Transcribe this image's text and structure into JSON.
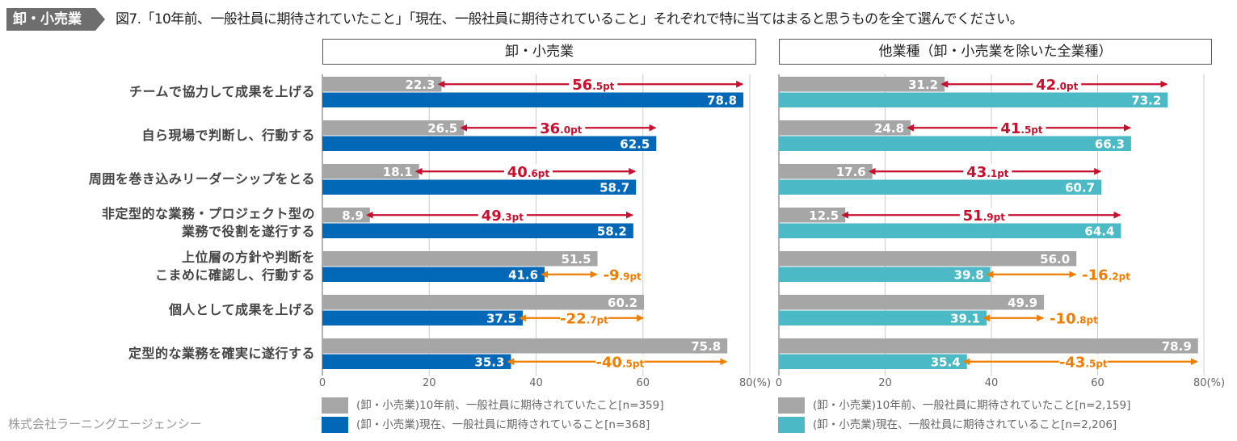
{
  "header": {
    "badge": "卸・小売業",
    "question": "図7.「10年前、一般社員に期待されていたこと」「現在、一般社員に期待されていること」それぞれで特に当てはまると思うものを全て選んでください。"
  },
  "categories": [
    [
      "チームで協力して成果を上げる"
    ],
    [
      "自ら現場で判断し、行動する"
    ],
    [
      "周囲を巻き込みリーダーシップをとる"
    ],
    [
      "非定型的な業務・プロジェクト型の",
      "業務で役割を遂行する"
    ],
    [
      "上位層の方針や判断を",
      "こまめに確認し、行動する"
    ],
    [
      "個人として成果を上げる"
    ],
    [
      "定型的な業務を確実に遂行する"
    ]
  ],
  "colors": {
    "past": "#a6a6a6",
    "now_left": "#0068b7",
    "now_right": "#4bbac6",
    "increase": "#c8102e",
    "decrease": "#ef7d00",
    "grid": "#cccccc",
    "badge": "#6e6e6e"
  },
  "footer": "株式会社ラーニングエージェンシー",
  "chart_data": [
    {
      "type": "bar",
      "orientation": "horizontal",
      "title": "卸・小売業",
      "categories": [
        "チームで協力して成果を上げる",
        "自ら現場で判断し、行動する",
        "周囲を巻き込みリーダーシップをとる",
        "非定型的な業務・プロジェクト型の業務で役割を遂行する",
        "上位層の方針や判断をこまめに確認し、行動する",
        "個人として成果を上げる",
        "定型的な業務を確実に遂行する"
      ],
      "series": [
        {
          "name": "(卸・小売業)10年前、一般社員に期待されていたこと[n=359]",
          "values": [
            22.3,
            26.5,
            18.1,
            8.9,
            51.5,
            60.2,
            75.8
          ]
        },
        {
          "name": "(卸・小売業)現在、一般社員に期待されていること[n=368]",
          "values": [
            78.8,
            62.5,
            58.7,
            58.2,
            41.6,
            37.5,
            35.3
          ]
        }
      ],
      "differences": [
        {
          "int": "56",
          "dec": ".5pt",
          "sign": "+"
        },
        {
          "int": "36",
          "dec": ".0pt",
          "sign": "+"
        },
        {
          "int": "40",
          "dec": ".6pt",
          "sign": "+"
        },
        {
          "int": "49",
          "dec": ".3pt",
          "sign": "+"
        },
        {
          "int": "-9",
          "dec": ".9pt",
          "sign": "-"
        },
        {
          "int": "-22",
          "dec": ".7pt",
          "sign": "-"
        },
        {
          "int": "-40",
          "dec": ".5pt",
          "sign": "-"
        }
      ],
      "xlim": [
        0,
        80
      ],
      "xticks": [
        "0",
        "20",
        "40",
        "60",
        "80(%)"
      ],
      "grid": true,
      "legend": "bottom"
    },
    {
      "type": "bar",
      "orientation": "horizontal",
      "title": "他業種（卸・小売業を除いた全業種）",
      "categories": [
        "チームで協力して成果を上げる",
        "自ら現場で判断し、行動する",
        "周囲を巻き込みリーダーシップをとる",
        "非定型的な業務・プロジェクト型の業務で役割を遂行する",
        "上位層の方針や判断をこまめに確認し、行動する",
        "個人として成果を上げる",
        "定型的な業務を確実に遂行する"
      ],
      "series": [
        {
          "name": "(卸・小売業)10年前、一般社員に期待されていたこと[n=2,159]",
          "values": [
            31.2,
            24.8,
            17.6,
            12.5,
            56.0,
            49.9,
            78.9
          ]
        },
        {
          "name": "(卸・小売業)現在、一般社員に期待されていること[n=2,206]",
          "values": [
            73.2,
            66.3,
            60.7,
            64.4,
            39.8,
            39.1,
            35.4
          ]
        }
      ],
      "differences": [
        {
          "int": "42",
          "dec": ".0pt",
          "sign": "+"
        },
        {
          "int": "41",
          "dec": ".5pt",
          "sign": "+"
        },
        {
          "int": "43",
          "dec": ".1pt",
          "sign": "+"
        },
        {
          "int": "51",
          "dec": ".9pt",
          "sign": "+"
        },
        {
          "int": "-16",
          "dec": ".2pt",
          "sign": "-"
        },
        {
          "int": "-10",
          "dec": ".8pt",
          "sign": "-"
        },
        {
          "int": "-43",
          "dec": ".5pt",
          "sign": "-"
        }
      ],
      "xlim": [
        0,
        80
      ],
      "xticks": [
        "0",
        "20",
        "40",
        "60",
        "80(%)"
      ],
      "grid": true,
      "legend": "bottom"
    }
  ]
}
